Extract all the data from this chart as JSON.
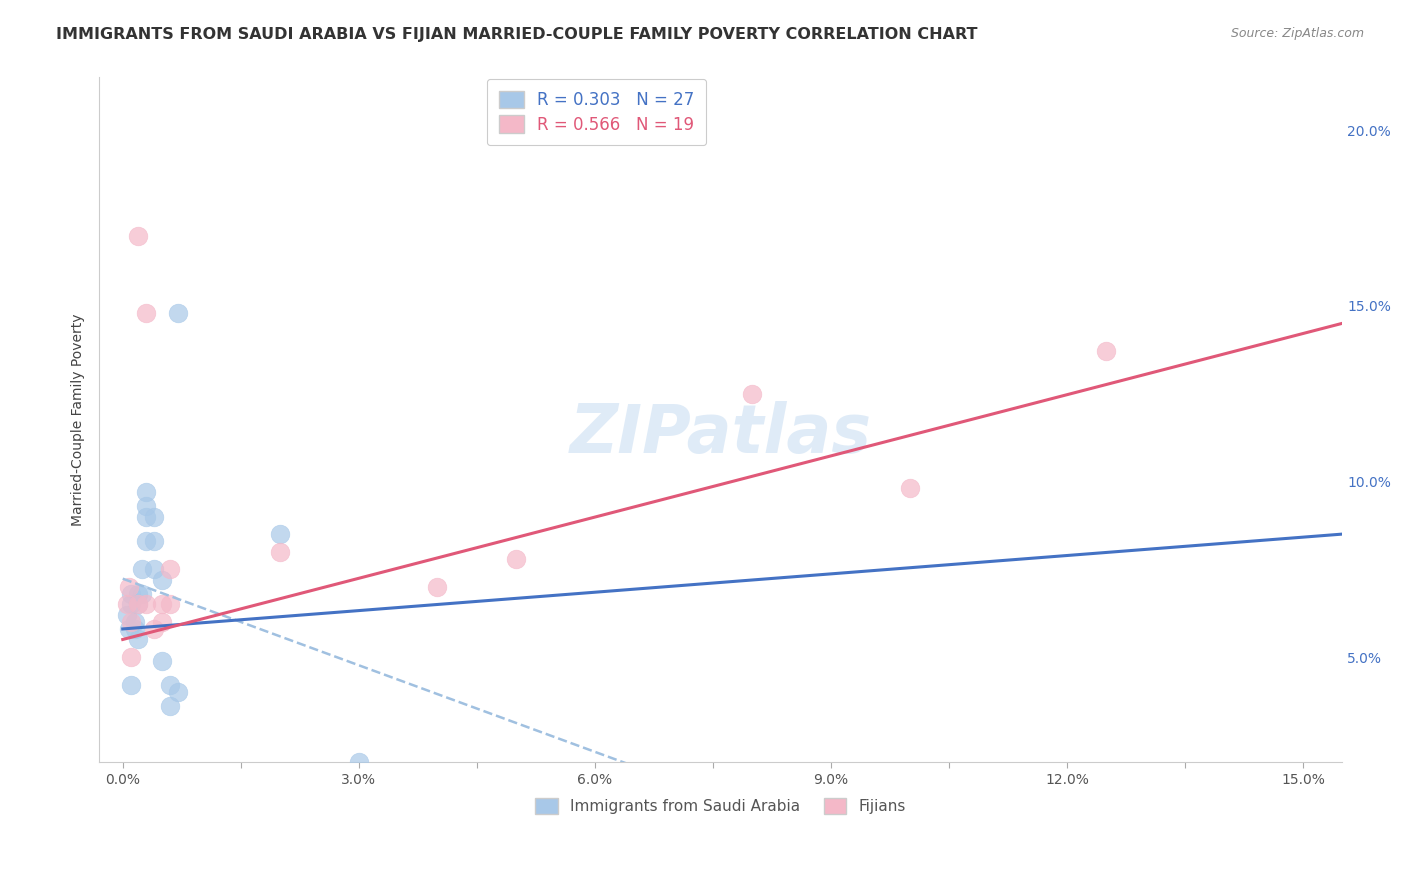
{
  "title": "IMMIGRANTS FROM SAUDI ARABIA VS FIJIAN MARRIED-COUPLE FAMILY POVERTY CORRELATION CHART",
  "source": "Source: ZipAtlas.com",
  "ylabel_label": "Married-Couple Family Poverty",
  "xlim": [
    -0.003,
    0.155
  ],
  "ylim": [
    0.02,
    0.215
  ],
  "xticks": [
    0.0,
    0.015,
    0.03,
    0.045,
    0.06,
    0.075,
    0.09,
    0.105,
    0.12,
    0.135,
    0.15
  ],
  "xtick_labels": [
    "0.0%",
    "",
    "3.0%",
    "",
    "6.0%",
    "",
    "9.0%",
    "",
    "12.0%",
    "",
    "15.0%"
  ],
  "yticks_right": [
    0.05,
    0.1,
    0.15,
    0.2
  ],
  "ytick_labels_right": [
    "5.0%",
    "10.0%",
    "15.0%",
    "20.0%"
  ],
  "blue_R": "0.303",
  "blue_N": "27",
  "pink_R": "0.566",
  "pink_N": "19",
  "blue_color": "#A8C8E8",
  "pink_color": "#F4B8C8",
  "blue_line_color": "#4472C4",
  "blue_dash_color": "#A0C0E0",
  "pink_line_color": "#E05878",
  "watermark_text": "ZIPatlas",
  "blue_scatter_x": [
    0.0005,
    0.0008,
    0.001,
    0.001,
    0.001,
    0.0015,
    0.0015,
    0.002,
    0.002,
    0.002,
    0.0025,
    0.0025,
    0.003,
    0.003,
    0.003,
    0.003,
    0.004,
    0.004,
    0.004,
    0.005,
    0.005,
    0.006,
    0.006,
    0.007,
    0.007,
    0.02,
    0.03
  ],
  "blue_scatter_y": [
    0.062,
    0.058,
    0.065,
    0.068,
    0.042,
    0.06,
    0.058,
    0.065,
    0.068,
    0.055,
    0.075,
    0.068,
    0.083,
    0.09,
    0.097,
    0.093,
    0.083,
    0.09,
    0.075,
    0.072,
    0.049,
    0.042,
    0.036,
    0.04,
    0.148,
    0.085,
    0.02
  ],
  "pink_scatter_x": [
    0.0005,
    0.0008,
    0.001,
    0.001,
    0.002,
    0.002,
    0.003,
    0.003,
    0.004,
    0.005,
    0.005,
    0.006,
    0.006,
    0.02,
    0.04,
    0.05,
    0.08,
    0.1,
    0.125
  ],
  "pink_scatter_y": [
    0.065,
    0.07,
    0.06,
    0.05,
    0.065,
    0.17,
    0.148,
    0.065,
    0.058,
    0.065,
    0.06,
    0.075,
    0.065,
    0.08,
    0.07,
    0.078,
    0.125,
    0.098,
    0.137
  ],
  "background_color": "#FFFFFF",
  "grid_color": "#D8D8D8"
}
